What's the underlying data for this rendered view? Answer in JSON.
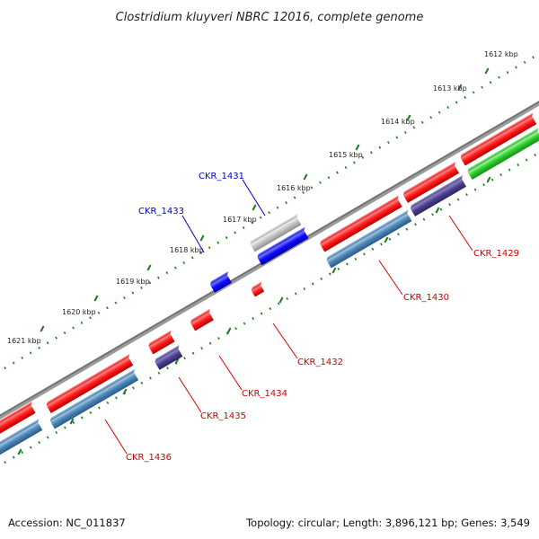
{
  "title": "Clostridium kluyveri NBRC 12016, complete genome",
  "accession": "Accession: NC_011837",
  "topology": "Topology: circular; Length: 3,896,121 bp; Genes: 3,549",
  "colors": {
    "forward_cds": "#ff1a1a",
    "reverse_cds": "#4a86b8",
    "rna": "#2dcf2d",
    "other": "#0b0bf5",
    "pseudo": "#bdbdbd",
    "unknown": "#4a3f8e",
    "backbone": "#808080",
    "ruler": "#1e7a1e",
    "label_forward": "#cc0000",
    "label_reverse": "#0000cc"
  },
  "scale_labels": [
    "1612 kbp",
    "1613 kbp",
    "1614 kbp",
    "1615 kbp",
    "1616 kbp",
    "1617 kbp",
    "1618 kbp",
    "1619 kbp",
    "1620 kbp",
    "1621 kbp"
  ],
  "gene_labels": [
    {
      "id": "CKR_1429",
      "text": "CKR_1429",
      "strand": "reverse"
    },
    {
      "id": "CKR_1430",
      "text": "CKR_1430",
      "strand": "reverse"
    },
    {
      "id": "CKR_1431",
      "text": "CKR_1431",
      "strand": "forward"
    },
    {
      "id": "CKR_1432",
      "text": "CKR_1432",
      "strand": "reverse"
    },
    {
      "id": "CKR_1433",
      "text": "CKR_1433",
      "strand": "forward"
    },
    {
      "id": "CKR_1434",
      "text": "CKR_1434",
      "strand": "reverse"
    },
    {
      "id": "CKR_1435",
      "text": "CKR_1435",
      "strand": "reverse"
    },
    {
      "id": "CKR_1436",
      "text": "CKR_1436",
      "strand": "reverse"
    }
  ]
}
